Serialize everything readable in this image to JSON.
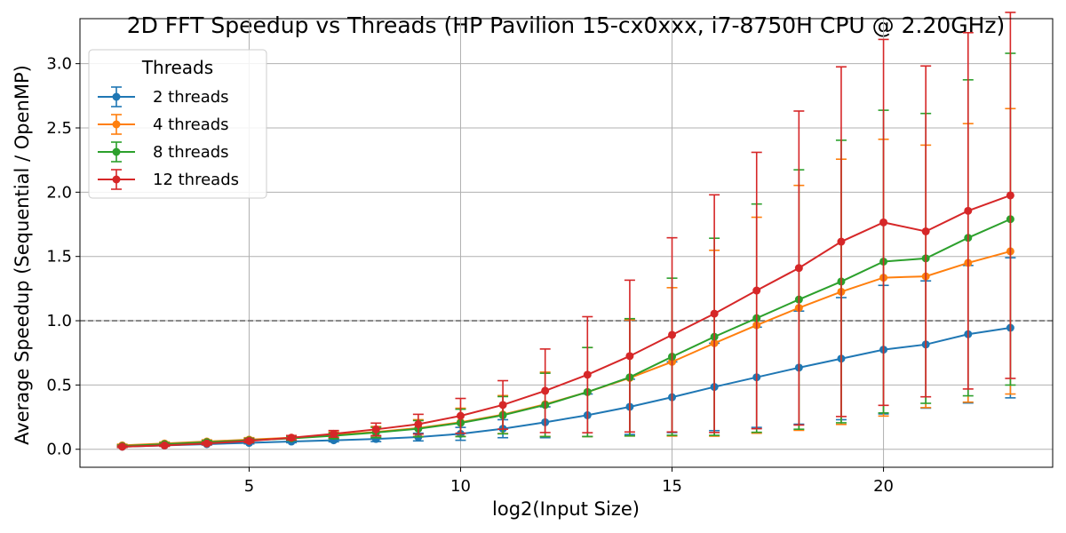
{
  "chart_data": {
    "type": "line",
    "title": "2D FFT Speedup vs Threads (HP Pavilion 15-cx0xxx, i7-8750H CPU @ 2.20GHz)",
    "xlabel": "log2(Input Size)",
    "ylabel": "Average Speedup (Sequential / OpenMP)",
    "xlim": [
      1.0,
      24.0
    ],
    "ylim": [
      -0.14,
      3.35
    ],
    "xticks": [
      5,
      10,
      15,
      20
    ],
    "yticks": [
      0.0,
      0.5,
      1.0,
      1.5,
      2.0,
      2.5,
      3.0
    ],
    "xtick_labels": [
      "5",
      "10",
      "15",
      "20"
    ],
    "ytick_labels": [
      "0.0",
      "0.5",
      "1.0",
      "1.5",
      "2.0",
      "2.5",
      "3.0"
    ],
    "grid": true,
    "reference_line": {
      "y": 1.0,
      "style": "dashed",
      "color": "#808080"
    },
    "legend": {
      "title": "Threads",
      "position": "top-left"
    },
    "x": [
      2,
      3,
      4,
      5,
      6,
      7,
      8,
      9,
      10,
      11,
      12,
      13,
      14,
      15,
      16,
      17,
      18,
      19,
      20,
      21,
      22,
      23
    ],
    "series": [
      {
        "name": "2 threads",
        "color": "#1f77b4",
        "values": [
          0.02,
          0.03,
          0.04,
          0.05,
          0.06,
          0.07,
          0.08,
          0.095,
          0.12,
          0.16,
          0.21,
          0.265,
          0.33,
          0.405,
          0.485,
          0.56,
          0.635,
          0.705,
          0.775,
          0.815,
          0.895,
          0.945
        ],
        "errors": [
          0.005,
          0.006,
          0.007,
          0.008,
          0.009,
          0.012,
          0.02,
          0.03,
          0.05,
          0.07,
          0.12,
          0.165,
          0.215,
          0.275,
          0.34,
          0.39,
          0.44,
          0.475,
          0.5,
          0.495,
          0.535,
          0.545
        ]
      },
      {
        "name": "4 threads",
        "color": "#ff7f0e",
        "values": [
          0.03,
          0.045,
          0.06,
          0.075,
          0.09,
          0.11,
          0.135,
          0.165,
          0.21,
          0.27,
          0.35,
          0.445,
          0.555,
          0.68,
          0.825,
          0.965,
          1.1,
          1.225,
          1.335,
          1.345,
          1.45,
          1.54
        ]
      },
      {
        "name": "8 threads",
        "color": "#2ca02c",
        "values": [
          0.025,
          0.04,
          0.055,
          0.07,
          0.085,
          0.105,
          0.13,
          0.16,
          0.205,
          0.265,
          0.345,
          0.445,
          0.56,
          0.72,
          0.875,
          1.02,
          1.165,
          1.305,
          1.46,
          1.485,
          1.645,
          1.79
        ]
      },
      {
        "name": "12 threads",
        "color": "#d62728",
        "values": [
          0.02,
          0.03,
          0.045,
          0.065,
          0.09,
          0.12,
          0.155,
          0.195,
          0.26,
          0.345,
          0.455,
          0.58,
          0.725,
          0.89,
          1.055,
          1.235,
          1.41,
          1.615,
          1.765,
          1.695,
          1.855,
          1.975
        ]
      }
    ]
  }
}
